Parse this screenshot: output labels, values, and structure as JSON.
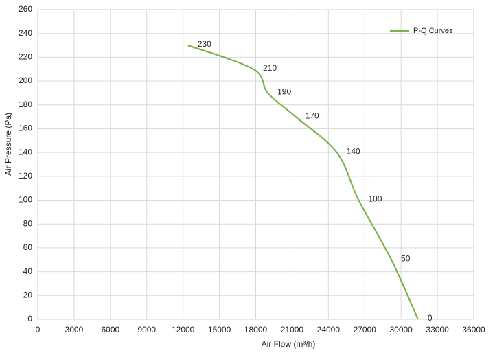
{
  "chart_data": {
    "type": "line",
    "x_label": "Air Flow  (m³/h)",
    "y_label": "Air Pressure  (Pa)",
    "x": [
      12400,
      17800,
      19000,
      21300,
      24700,
      26500,
      29200,
      31400
    ],
    "series": [
      {
        "name": "P-Q Curves",
        "color": "#7cb24a",
        "values": [
          230,
          210,
          190,
          170,
          140,
          100,
          50,
          0
        ]
      }
    ],
    "xlim": [
      0,
      36000
    ],
    "xticks": [
      0,
      3000,
      6000,
      9000,
      12000,
      15000,
      18000,
      21000,
      24000,
      27000,
      30000,
      33000,
      36000
    ],
    "ylim": [
      0,
      260
    ],
    "yticks": [
      0,
      20,
      40,
      60,
      80,
      100,
      120,
      140,
      160,
      180,
      200,
      220,
      240,
      260
    ],
    "grid": true,
    "legend": "upper right"
  }
}
